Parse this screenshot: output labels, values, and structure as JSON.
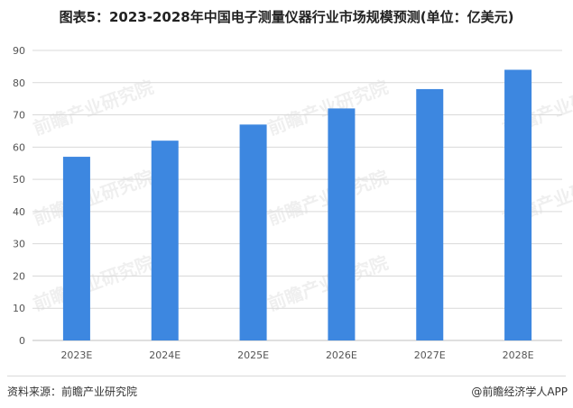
{
  "chart_data": {
    "type": "bar",
    "title": "图表5：2023-2028年中国电子测量仪器行业市场规模预测(单位：亿美元)",
    "categories": [
      "2023E",
      "2024E",
      "2025E",
      "2026E",
      "2027E",
      "2028E"
    ],
    "series": [
      {
        "values": [
          57,
          62,
          67,
          72,
          78,
          84
        ]
      }
    ],
    "ylim": [
      0,
      90
    ],
    "yticks": [
      0,
      10,
      20,
      30,
      40,
      50,
      60,
      70,
      80,
      90
    ],
    "grid": true,
    "bar_color": "#3d87e0",
    "grid_color": "#d9d9d9"
  },
  "footer": {
    "source": "资料来源：前瞻产业研究院",
    "credit": "@前瞻经济学人APP"
  },
  "watermark": {
    "text": "前瞻产业研究院"
  }
}
